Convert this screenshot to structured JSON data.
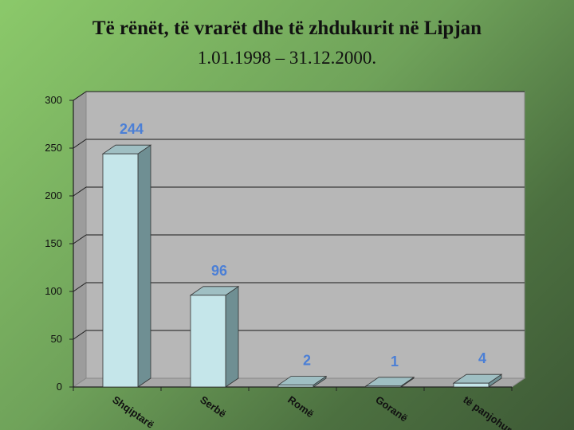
{
  "slide": {
    "title": "Të rënët, të vrarët dhe të zhdukurit në Lipjan",
    "subtitle": "1.01.1998 – 31.12.2000."
  },
  "colors": {
    "bar_front": "#c5e6ea",
    "bar_side": "#6f8f93",
    "bar_top": "#9fbfc3",
    "value_label": "#4b7fd6",
    "plot_wall": "#b7b7b7"
  },
  "chart_data": {
    "type": "bar",
    "title": "",
    "xlabel": "",
    "ylabel": "",
    "categories": [
      "Shqiptarë",
      "Serbë",
      "Romë",
      "Goranë",
      "të panjohur"
    ],
    "values": [
      244,
      96,
      2,
      1,
      4
    ],
    "ylim": [
      0,
      300
    ],
    "yticks": [
      0,
      50,
      100,
      150,
      200,
      250,
      300
    ],
    "grid": true,
    "legend": "none",
    "style": "3d-column"
  }
}
